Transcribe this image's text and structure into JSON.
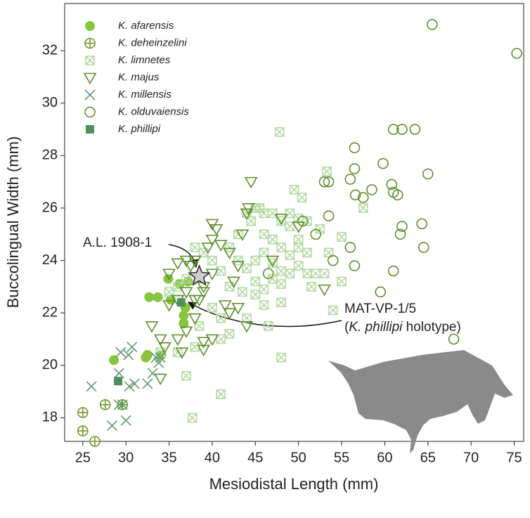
{
  "chart_data": {
    "type": "scatter",
    "x_label": "Mesiodistal Length (mm)",
    "y_label": "Buccolingual Width (mm)",
    "xlim": [
      22.9,
      76.1
    ],
    "ylim": [
      17.1,
      33.8
    ],
    "xticks": [
      25,
      30,
      35,
      40,
      45,
      50,
      55,
      60,
      65,
      70,
      75
    ],
    "yticks": [
      18,
      20,
      22,
      24,
      26,
      28,
      30,
      32
    ],
    "legend": "upper left",
    "series": [
      {
        "name": "K. afarensis",
        "color": "#86c53c",
        "marker": "circle-filled",
        "x": [
          28.6,
          32.3,
          32.7,
          33.7,
          34.9,
          36.7,
          37.2,
          35.2,
          36.7,
          36.2,
          34.1,
          32.5,
          36.9
        ],
        "values": [
          20.2,
          20.3,
          22.6,
          22.6,
          23.3,
          21.9,
          23.2,
          22.5,
          21.6,
          23.1,
          20.4,
          20.4,
          22.2
        ]
      },
      {
        "name": "K. deheinzelini",
        "color": "#6f9a2a",
        "marker": "circle-plus",
        "x": [
          25,
          25,
          26.4,
          27.6,
          29.6
        ],
        "values": [
          18.2,
          17.5,
          17.1,
          18.5,
          18.5
        ]
      },
      {
        "name": "K. limnetes",
        "color": "#b3d9a3",
        "marker": "square-x",
        "x": [
          47.8,
          53.3,
          49.5,
          50.4,
          57.5,
          44,
          45,
          46,
          47,
          48,
          49,
          50,
          51,
          52.5,
          55,
          43,
          44.5,
          46,
          47,
          48,
          49,
          50,
          51,
          53.5,
          45,
          46,
          47,
          48,
          49,
          50,
          51,
          52,
          53,
          55,
          42,
          43,
          44,
          45,
          46,
          47,
          48,
          46,
          45,
          43.5,
          42,
          41,
          40,
          39,
          38,
          37,
          36,
          35,
          38.5,
          40,
          41,
          42,
          41,
          44,
          46.5,
          48,
          54,
          48,
          38,
          36,
          37,
          34,
          41,
          37.7,
          50,
          51.5,
          45.5,
          49
        ],
        "values": [
          28.9,
          27.4,
          26.7,
          26.4,
          26,
          25.8,
          26,
          25.8,
          25.8,
          25.5,
          25.3,
          25.6,
          25.5,
          25.2,
          24.9,
          25,
          25.5,
          25,
          24.8,
          24.5,
          24.2,
          24.5,
          24.3,
          24.3,
          24,
          24.3,
          23.9,
          23.6,
          23.5,
          23.8,
          23.5,
          23.5,
          23.5,
          23.2,
          24.5,
          24,
          23.7,
          23.2,
          22.9,
          23.3,
          23.1,
          22.3,
          22.7,
          22.8,
          23,
          23.6,
          24,
          24.3,
          24.5,
          23.3,
          23,
          22.8,
          21.5,
          22.2,
          21.8,
          21.2,
          21,
          21.8,
          21.5,
          22.4,
          22.1,
          20.3,
          20.7,
          20.5,
          19.6,
          20.5,
          18.9,
          18,
          24.8,
          23,
          26,
          25.8
        ]
      },
      {
        "name": "K. majus",
        "color": "#5d8f2c",
        "marker": "triangle-down",
        "x": [
          35,
          36,
          37,
          37.5,
          38,
          36,
          37,
          38,
          38.5,
          39,
          39.5,
          40,
          40.5,
          40,
          41,
          41.5,
          42,
          42.5,
          43,
          43.5,
          44,
          44.2,
          44.5,
          43,
          44,
          40,
          39,
          36.5,
          36,
          37,
          34,
          34.5,
          34,
          33,
          35,
          39,
          40,
          42,
          47,
          48,
          53,
          50,
          39,
          38,
          36
        ],
        "values": [
          23.5,
          23.9,
          24,
          23.8,
          24,
          22.5,
          22.8,
          22.5,
          22.5,
          23,
          24.5,
          25.4,
          25.2,
          24.8,
          24.6,
          22.3,
          22,
          23.2,
          23.8,
          25,
          25.8,
          26,
          27,
          22.2,
          21.5,
          21,
          20.6,
          20.5,
          21,
          21.3,
          19.5,
          20.7,
          21,
          21.5,
          22.3,
          22.8,
          23.5,
          24.3,
          24,
          25.6,
          22.9,
          25.3,
          20.9,
          21.8,
          22.5
        ]
      },
      {
        "name": "K. millensis",
        "color": "#5f9a6c",
        "marker": "x",
        "x": [
          26,
          29.2,
          29.4,
          30.3,
          30.7,
          30.4,
          31,
          32.5,
          33.1,
          33.5,
          34,
          29.2,
          28.4,
          30,
          29.6,
          33.8
        ],
        "values": [
          19.2,
          19.7,
          20.5,
          20.4,
          20.7,
          19.2,
          19.3,
          19.3,
          19.7,
          20.3,
          20.3,
          18.5,
          17.7,
          17.9,
          18.5,
          20.1
        ]
      },
      {
        "name": "K. olduvaiensis",
        "color": "#5d8f2c",
        "marker": "circle-open",
        "x": [
          65.5,
          75.3,
          61,
          62,
          63.5,
          56.5,
          59.8,
          56.5,
          53.5,
          53,
          65,
          56,
          58.5,
          60.8,
          56.6,
          57.5,
          61.5,
          61,
          50.5,
          53.5,
          62,
          64.3,
          52,
          61.8,
          56,
          64.5,
          46.5,
          54,
          56.5,
          61,
          59.5,
          68
        ],
        "values": [
          33,
          31.9,
          29,
          29,
          29,
          28.3,
          27.7,
          27.5,
          27,
          27,
          27.3,
          27.1,
          26.7,
          26.9,
          26.5,
          26.4,
          26.5,
          26.6,
          25.5,
          25.7,
          25.3,
          25.4,
          25,
          25,
          24.5,
          24.5,
          23.5,
          24,
          23.8,
          23.6,
          22.8,
          21
        ]
      },
      {
        "name": "K. phillipi",
        "color": "#4e8f5e",
        "marker": "square-filled",
        "x": [
          29.1,
          36.4
        ],
        "values": [
          19.4,
          22.4
        ]
      }
    ],
    "annotations": [
      {
        "text": "A.L. 1908-1",
        "x": 38.5,
        "y": 23.4
      },
      {
        "line1": "MAT-VP-1/5",
        "line2": [
          "(",
          "K. phillipi",
          " holotype)"
        ]
      }
    ]
  }
}
